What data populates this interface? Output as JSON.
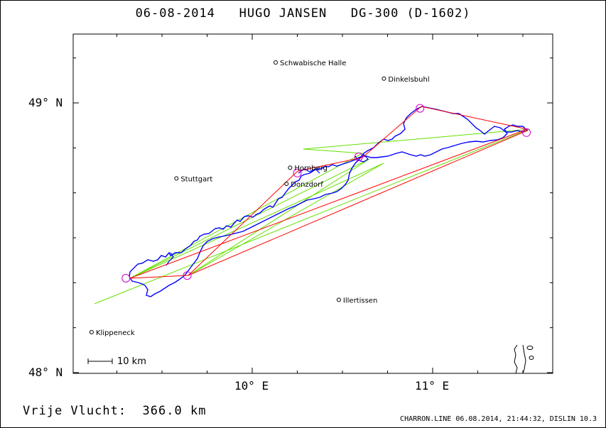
{
  "title": "06-08-2014   HUGO JANSEN   DG-300 (D-1602)",
  "free_flight": {
    "label": "Vrije Vlucht:",
    "value": "366.0 km"
  },
  "footer": "CHARRON.LINE 06.08.2014, 21:44:32, DISLIN 10.3",
  "axes": {
    "lat_labels": [
      "49° N",
      "48° N"
    ],
    "lon_labels": [
      "10° E",
      "11° E"
    ]
  },
  "scale_bar": "10 km",
  "places": [
    {
      "name": "Schwabische Halle",
      "lon": 10.13,
      "lat": 49.15
    },
    {
      "name": "Dinkelsbuhl",
      "lon": 10.73,
      "lat": 49.09
    },
    {
      "name": "Stuttgart",
      "lon": 9.58,
      "lat": 48.72
    },
    {
      "name": "Hornberg",
      "lon": 10.21,
      "lat": 48.76
    },
    {
      "name": "Donzdorf",
      "lon": 10.19,
      "lat": 48.7
    },
    {
      "name": "Illertissen",
      "lon": 10.48,
      "lat": 48.27
    },
    {
      "name": "Klippeneck",
      "lon": 9.11,
      "lat": 48.15
    }
  ],
  "turnpoints": [
    {
      "lon": 9.3,
      "lat": 48.35
    },
    {
      "lon": 9.64,
      "lat": 48.36
    },
    {
      "lon": 10.25,
      "lat": 48.74
    },
    {
      "lon": 10.59,
      "lat": 48.8
    },
    {
      "lon": 10.93,
      "lat": 48.98
    },
    {
      "lon": 11.52,
      "lat": 48.89
    }
  ],
  "colors": {
    "track": "#0000ff",
    "task": "#ff0000",
    "legs": "#66e000",
    "turnpoint": "#d000d0"
  }
}
